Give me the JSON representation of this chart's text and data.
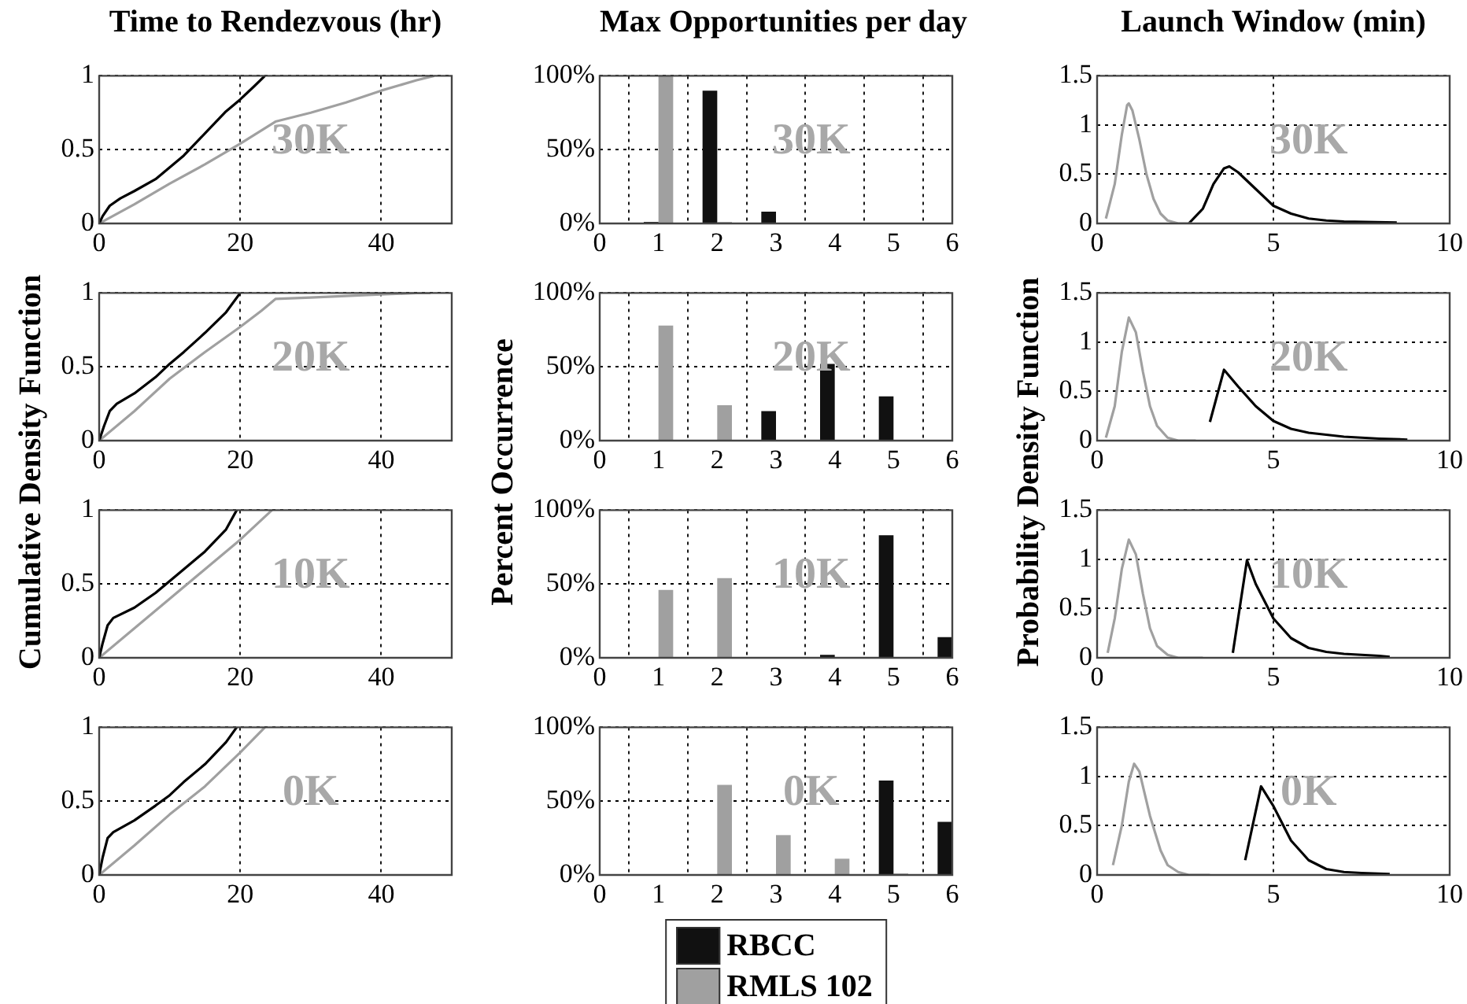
{
  "chart_data": [
    {
      "type": "line",
      "title": "Time to Rendezvous (hr)",
      "ylabel": "Cumulative Density Function",
      "annotations": [
        "30K"
      ],
      "xlim": [
        0,
        50
      ],
      "xticks": [
        0,
        20,
        40
      ],
      "ylim": [
        0,
        1
      ],
      "yticks": [
        0,
        0.5,
        1
      ],
      "grid": true,
      "marker": "none",
      "series": [
        {
          "color": "#000000",
          "x": [
            0,
            0.5,
            1.5,
            3,
            5,
            8,
            10,
            12,
            14,
            16,
            18,
            20,
            22,
            23.5
          ],
          "values": [
            0,
            0.05,
            0.12,
            0.17,
            0.22,
            0.3,
            0.38,
            0.46,
            0.56,
            0.66,
            0.76,
            0.84,
            0.93,
            1
          ]
        },
        {
          "color": "#a0a0a0",
          "x": [
            0,
            5,
            10,
            15,
            20,
            25,
            30,
            35,
            40,
            45,
            47.5
          ],
          "values": [
            0,
            0.13,
            0.27,
            0.4,
            0.54,
            0.69,
            0.75,
            0.82,
            0.9,
            0.97,
            1
          ]
        }
      ]
    },
    {
      "type": "bar",
      "title": "Max Opportunities per day",
      "ylabel": "Percent Occurrence",
      "annotations": [
        "30K"
      ],
      "x": [
        1,
        2,
        3,
        4,
        5,
        6
      ],
      "xlim": [
        0,
        6
      ],
      "xticks": [
        0,
        1,
        2,
        3,
        4,
        5,
        6
      ],
      "ylim": [
        0,
        100
      ],
      "yticks": [
        {
          "value": 0,
          "label": "0%"
        },
        {
          "value": 50,
          "label": "50%"
        },
        {
          "value": 100,
          "label": "100%"
        }
      ],
      "grid": true,
      "series": [
        {
          "color": "#111111",
          "values": [
            1,
            90,
            8,
            0,
            0,
            0
          ]
        },
        {
          "color": "#a0a0a0",
          "values": [
            100,
            1,
            0,
            0,
            0,
            0
          ]
        }
      ]
    },
    {
      "type": "line",
      "title": "Launch Window (min)",
      "ylabel": "Probability Density Function",
      "annotations": [
        "30K"
      ],
      "xlim": [
        0,
        10
      ],
      "xticks": [
        0,
        5,
        10
      ],
      "ylim": [
        0,
        1.5
      ],
      "yticks": [
        0,
        0.5,
        1,
        1.5
      ],
      "grid": true,
      "marker": "none",
      "series": [
        {
          "color": "#a0a0a0",
          "x": [
            0.25,
            0.5,
            0.7,
            0.85,
            0.9,
            1.0,
            1.2,
            1.4,
            1.6,
            1.8,
            2.0,
            2.3,
            2.7
          ],
          "values": [
            0.05,
            0.4,
            0.9,
            1.2,
            1.22,
            1.15,
            0.85,
            0.5,
            0.25,
            0.1,
            0.03,
            0,
            0
          ]
        },
        {
          "color": "#000000",
          "x": [
            2.6,
            3.0,
            3.3,
            3.6,
            3.75,
            4.0,
            4.5,
            5.0,
            5.5,
            6.0,
            6.5,
            7.0,
            8.5
          ],
          "values": [
            0,
            0.15,
            0.4,
            0.56,
            0.58,
            0.52,
            0.35,
            0.18,
            0.1,
            0.05,
            0.03,
            0.02,
            0.01
          ]
        }
      ]
    },
    {
      "type": "line",
      "annotations": [
        "20K"
      ],
      "xlim": [
        0,
        50
      ],
      "xticks": [
        0,
        20,
        40
      ],
      "ylim": [
        0,
        1
      ],
      "yticks": [
        0,
        0.5,
        1
      ],
      "grid": true,
      "marker": "none",
      "series": [
        {
          "color": "#000000",
          "x": [
            0,
            0.7,
            1.5,
            2.5,
            5,
            8,
            10,
            12,
            15,
            18,
            20
          ],
          "values": [
            0,
            0.1,
            0.2,
            0.25,
            0.32,
            0.43,
            0.52,
            0.6,
            0.73,
            0.87,
            1
          ]
        },
        {
          "color": "#a0a0a0",
          "x": [
            0,
            5,
            10,
            15,
            20,
            23,
            25,
            30,
            35,
            40,
            45,
            47
          ],
          "values": [
            0,
            0.2,
            0.42,
            0.6,
            0.77,
            0.88,
            0.96,
            0.97,
            0.98,
            0.99,
            1,
            1
          ]
        }
      ]
    },
    {
      "type": "bar",
      "annotations": [
        "20K"
      ],
      "x": [
        1,
        2,
        3,
        4,
        5,
        6
      ],
      "xlim": [
        0,
        6
      ],
      "xticks": [
        0,
        1,
        2,
        3,
        4,
        5,
        6
      ],
      "ylim": [
        0,
        100
      ],
      "yticks": [
        {
          "value": 0,
          "label": "0%"
        },
        {
          "value": 50,
          "label": "50%"
        },
        {
          "value": 100,
          "label": "100%"
        }
      ],
      "grid": true,
      "series": [
        {
          "color": "#111111",
          "values": [
            0,
            0,
            20,
            52,
            30,
            0
          ]
        },
        {
          "color": "#a0a0a0",
          "values": [
            78,
            24,
            0,
            0,
            0,
            0
          ]
        }
      ]
    },
    {
      "type": "line",
      "annotations": [
        "20K"
      ],
      "xlim": [
        0,
        10
      ],
      "xticks": [
        0,
        5,
        10
      ],
      "ylim": [
        0,
        1.5
      ],
      "yticks": [
        0,
        0.5,
        1,
        1.5
      ],
      "grid": true,
      "marker": "none",
      "series": [
        {
          "color": "#a0a0a0",
          "x": [
            0.25,
            0.5,
            0.7,
            0.9,
            1.1,
            1.3,
            1.5,
            1.7,
            2.0,
            2.3,
            2.8
          ],
          "values": [
            0.03,
            0.35,
            0.9,
            1.25,
            1.1,
            0.7,
            0.35,
            0.15,
            0.03,
            0,
            0
          ]
        },
        {
          "color": "#000000",
          "x": [
            3.2,
            3.6,
            4.0,
            4.5,
            5.0,
            5.5,
            6.0,
            7.0,
            8.0,
            8.8
          ],
          "values": [
            0.19,
            0.72,
            0.55,
            0.35,
            0.2,
            0.12,
            0.08,
            0.04,
            0.02,
            0.01
          ]
        }
      ]
    },
    {
      "type": "line",
      "annotations": [
        "10K"
      ],
      "xlim": [
        0,
        50
      ],
      "xticks": [
        0,
        20,
        40
      ],
      "ylim": [
        0,
        1
      ],
      "yticks": [
        0,
        0.5,
        1
      ],
      "grid": true,
      "marker": "none",
      "series": [
        {
          "color": "#000000",
          "x": [
            0,
            0.5,
            1.2,
            2,
            5,
            8,
            10,
            12,
            15,
            18,
            19.5
          ],
          "values": [
            0,
            0.1,
            0.22,
            0.27,
            0.34,
            0.44,
            0.52,
            0.6,
            0.72,
            0.87,
            1
          ]
        },
        {
          "color": "#a0a0a0",
          "x": [
            0,
            5,
            10,
            15,
            20,
            24.5
          ],
          "values": [
            0,
            0.2,
            0.4,
            0.6,
            0.8,
            1
          ]
        }
      ]
    },
    {
      "type": "bar",
      "annotations": [
        "10K"
      ],
      "x": [
        1,
        2,
        3,
        4,
        5,
        6
      ],
      "xlim": [
        0,
        6
      ],
      "xticks": [
        0,
        1,
        2,
        3,
        4,
        5,
        6
      ],
      "ylim": [
        0,
        100
      ],
      "yticks": [
        {
          "value": 0,
          "label": "0%"
        },
        {
          "value": 50,
          "label": "50%"
        },
        {
          "value": 100,
          "label": "100%"
        }
      ],
      "grid": true,
      "series": [
        {
          "color": "#111111",
          "values": [
            0,
            0,
            0,
            2,
            83,
            14
          ]
        },
        {
          "color": "#a0a0a0",
          "values": [
            46,
            54,
            0,
            0,
            0,
            0
          ]
        }
      ]
    },
    {
      "type": "line",
      "annotations": [
        "10K"
      ],
      "xlim": [
        0,
        10
      ],
      "xticks": [
        0,
        5,
        10
      ],
      "ylim": [
        0,
        1.5
      ],
      "yticks": [
        0,
        0.5,
        1,
        1.5
      ],
      "grid": true,
      "marker": "none",
      "series": [
        {
          "color": "#a0a0a0",
          "x": [
            0.3,
            0.5,
            0.7,
            0.9,
            1.1,
            1.3,
            1.5,
            1.7,
            2.0,
            2.3,
            3.0
          ],
          "values": [
            0.05,
            0.4,
            0.9,
            1.2,
            1.05,
            0.65,
            0.3,
            0.12,
            0.03,
            0,
            0
          ]
        },
        {
          "color": "#000000",
          "x": [
            3.85,
            4.25,
            4.5,
            5.0,
            5.5,
            6.0,
            6.5,
            7.0,
            8.0,
            8.3
          ],
          "values": [
            0.05,
            0.99,
            0.75,
            0.4,
            0.2,
            0.1,
            0.06,
            0.04,
            0.02,
            0.01
          ]
        }
      ]
    },
    {
      "type": "line",
      "annotations": [
        "0K"
      ],
      "xlim": [
        0,
        50
      ],
      "xticks": [
        0,
        20,
        40
      ],
      "ylim": [
        0,
        1
      ],
      "yticks": [
        0,
        0.5,
        1
      ],
      "grid": true,
      "marker": "none",
      "series": [
        {
          "color": "#000000",
          "x": [
            0,
            0.5,
            1.2,
            2,
            5,
            8,
            10,
            12,
            15,
            18,
            19.5
          ],
          "values": [
            0,
            0.12,
            0.25,
            0.29,
            0.37,
            0.47,
            0.54,
            0.63,
            0.75,
            0.9,
            1
          ]
        },
        {
          "color": "#a0a0a0",
          "x": [
            0,
            5,
            10,
            15,
            20,
            23.5
          ],
          "values": [
            0,
            0.2,
            0.41,
            0.6,
            0.83,
            1
          ]
        }
      ]
    },
    {
      "type": "bar",
      "annotations": [
        "0K"
      ],
      "x": [
        1,
        2,
        3,
        4,
        5,
        6
      ],
      "xlim": [
        0,
        6
      ],
      "xticks": [
        0,
        1,
        2,
        3,
        4,
        5,
        6
      ],
      "ylim": [
        0,
        100
      ],
      "yticks": [
        {
          "value": 0,
          "label": "0%"
        },
        {
          "value": 50,
          "label": "50%"
        },
        {
          "value": 100,
          "label": "100%"
        }
      ],
      "grid": true,
      "legend": "bottom",
      "series": [
        {
          "name": "RBCC",
          "color": "#111111",
          "values": [
            0,
            0,
            0,
            0,
            64,
            36
          ]
        },
        {
          "name": "RMLS 102",
          "color": "#a0a0a0",
          "values": [
            0,
            61,
            27,
            11,
            1,
            0
          ]
        }
      ]
    },
    {
      "type": "line",
      "annotations": [
        "0K"
      ],
      "xlim": [
        0,
        10
      ],
      "xticks": [
        0,
        5,
        10
      ],
      "ylim": [
        0,
        1.5
      ],
      "yticks": [
        0,
        0.5,
        1,
        1.5
      ],
      "grid": true,
      "marker": "none",
      "series": [
        {
          "color": "#a0a0a0",
          "x": [
            0.45,
            0.7,
            0.9,
            1.05,
            1.2,
            1.5,
            1.8,
            2.0,
            2.3,
            2.6,
            3.2
          ],
          "values": [
            0.1,
            0.5,
            0.95,
            1.13,
            1.05,
            0.6,
            0.25,
            0.1,
            0.03,
            0,
            0
          ]
        },
        {
          "color": "#000000",
          "x": [
            4.2,
            4.65,
            5.0,
            5.5,
            6.0,
            6.5,
            7.0,
            7.5,
            8.3
          ],
          "values": [
            0.15,
            0.9,
            0.7,
            0.35,
            0.15,
            0.06,
            0.03,
            0.02,
            0.01
          ]
        }
      ]
    }
  ]
}
